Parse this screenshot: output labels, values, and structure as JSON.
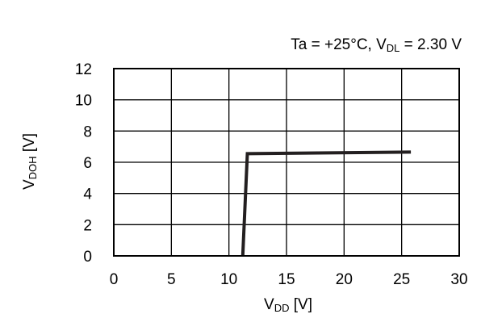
{
  "chart_data": {
    "type": "line",
    "title": "",
    "condition": {
      "prefix": "Ta = +25°C, V",
      "subscript": "DL",
      "suffix": " = 2.30 V"
    },
    "xlabel": {
      "main": "V",
      "subscript": "DD",
      "unit": " [V]"
    },
    "ylabel": {
      "main": "V",
      "subscript": "DOH",
      "unit": " [V]"
    },
    "xlim": [
      0,
      30
    ],
    "ylim": [
      0,
      12
    ],
    "xticks": [
      0,
      5,
      10,
      15,
      20,
      25,
      30
    ],
    "yticks": [
      0,
      2,
      4,
      6,
      8,
      10,
      12
    ],
    "grid": true,
    "series": [
      {
        "x": [
          11.2,
          11.6,
          25.8
        ],
        "y": [
          0,
          6.55,
          6.65
        ]
      }
    ],
    "colors": {
      "line": "#231f20",
      "grid": "#000000",
      "frame": "#000000"
    }
  }
}
